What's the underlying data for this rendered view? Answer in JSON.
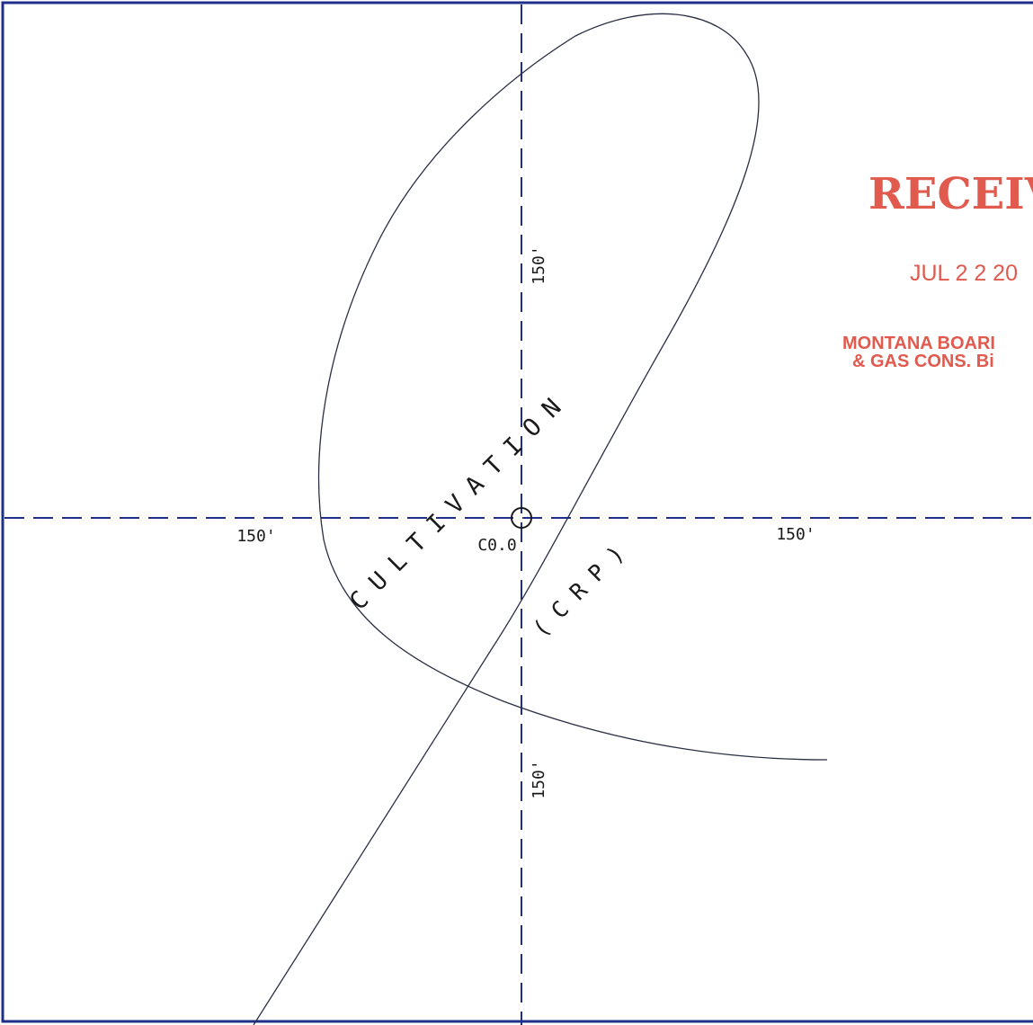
{
  "center": {
    "label": "C0.0"
  },
  "dimensions": {
    "north": "150'",
    "south": "150'",
    "west": "150'",
    "east": "150'"
  },
  "area_label": {
    "line1": "CULTIVATION",
    "line2": "(CRP)"
  },
  "stamp": {
    "title": "RECEIV",
    "date": "JUL 2 2 20",
    "line1": "MONTANA BOARI",
    "line2": "& GAS CONS. Bi",
    "color": "#e05a4e"
  },
  "colors": {
    "border": "#1f2f8a",
    "axis": "#1f2f8a",
    "curve": "#2b2f45"
  }
}
